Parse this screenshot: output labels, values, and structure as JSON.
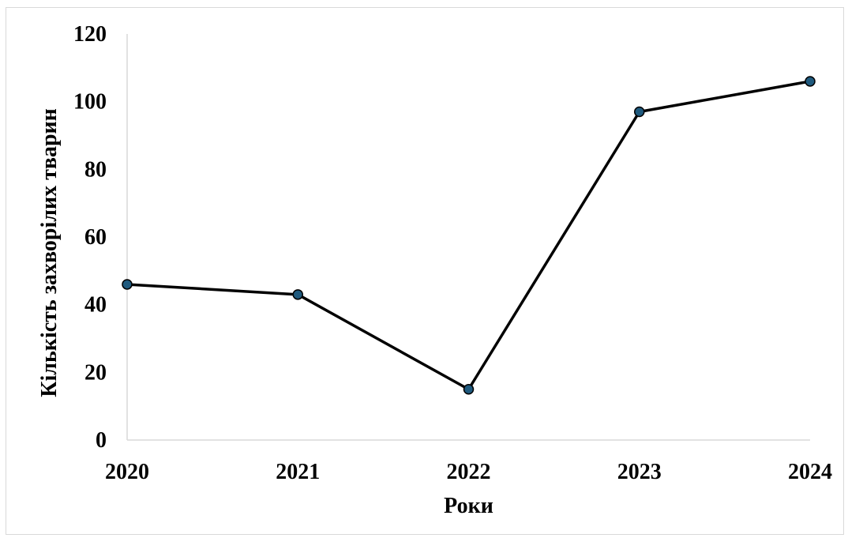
{
  "chart_data": {
    "type": "line",
    "x": [
      "2020",
      "2021",
      "2022",
      "2023",
      "2024"
    ],
    "series": [
      {
        "values": [
          46,
          43,
          15,
          97,
          106
        ]
      }
    ],
    "xlabel": "Роки",
    "ylabel": "Кількість захворілих тварин",
    "ylim": [
      0,
      120
    ],
    "yticks": [
      "0",
      "20",
      "40",
      "60",
      "80",
      "100",
      "120"
    ],
    "grid": false,
    "legend": "none",
    "line_color": "#000000",
    "marker_color": "#1f5a7e"
  }
}
